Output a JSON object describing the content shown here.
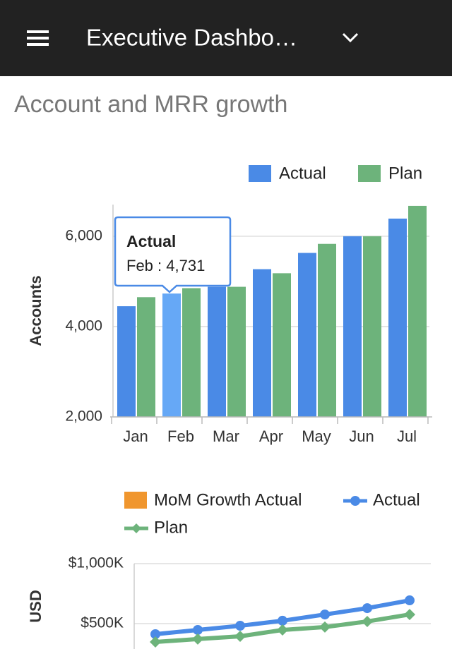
{
  "header": {
    "title": "Executive Dashbo…"
  },
  "section": {
    "title": "Account and MRR growth"
  },
  "chart_data": [
    {
      "type": "bar",
      "ylabel": "Accounts",
      "categories": [
        "Jan",
        "Feb",
        "Mar",
        "Apr",
        "May",
        "Jun",
        "Jul"
      ],
      "series": [
        {
          "name": "Actual",
          "color": "#4a8ae6",
          "values": [
            4450,
            4731,
            4880,
            5270,
            5630,
            6000,
            6390
          ]
        },
        {
          "name": "Plan",
          "color": "#6db37b",
          "values": [
            4650,
            4850,
            4880,
            5180,
            5830,
            6000,
            6670
          ]
        }
      ],
      "highlight_color": "#66a8f6",
      "ylim": [
        2000,
        6700
      ],
      "yticks": [
        {
          "value": 2000,
          "label": "2,000"
        },
        {
          "value": 4000,
          "label": "4,000"
        },
        {
          "value": 6000,
          "label": "6,000"
        }
      ],
      "grid": true,
      "tooltip": {
        "title": "Actual",
        "text": "Feb : 4,731"
      }
    },
    {
      "type": "line",
      "ylabel": "USD",
      "series": [
        {
          "name": "MoM Growth Actual",
          "color": "#f0962e",
          "type": "bar"
        },
        {
          "name": "Actual",
          "color": "#4a8ae6",
          "marker": "circle",
          "values": [
            412000,
            447000,
            482000,
            524000,
            576000,
            629000,
            694000
          ]
        },
        {
          "name": "Plan",
          "color": "#6db37b",
          "marker": "diamond",
          "values": [
            347000,
            371000,
            394000,
            447000,
            471000,
            518000,
            576000
          ]
        }
      ],
      "ylim": [
        0,
        1000000
      ],
      "yticks": [
        {
          "value": 500000,
          "label": "$500K"
        },
        {
          "value": 1000000,
          "label": "$1,000K"
        }
      ],
      "grid": true
    }
  ]
}
